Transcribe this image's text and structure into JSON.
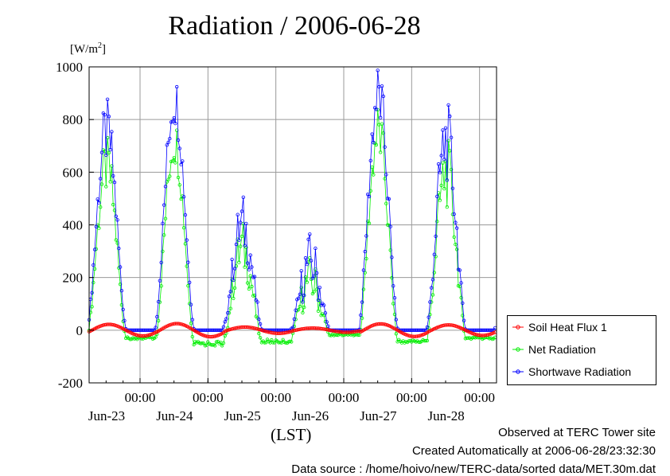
{
  "chart_data": {
    "type": "line",
    "title": "Radiation / 2006-06-28",
    "unit_label": "[W/m",
    "unit_sup": "2",
    "unit_close": "]",
    "xlabel": "(LST)",
    "ylim": [
      -200,
      1000
    ],
    "yticks": [
      -200,
      0,
      200,
      400,
      600,
      800,
      1000
    ],
    "ytick_labels": [
      "-200",
      "0",
      "200",
      "400",
      "600",
      "800",
      "1000"
    ],
    "x_range_hours": [
      0,
      144
    ],
    "x_ticks": [
      {
        "hour": 18,
        "time": "00:00",
        "date": "Jun-23"
      },
      {
        "hour": 42,
        "time": "00:00",
        "date": "Jun-24"
      },
      {
        "hour": 66,
        "time": "00:00",
        "date": "Jun-25"
      },
      {
        "hour": 90,
        "time": "00:00",
        "date": "Jun-26"
      },
      {
        "hour": 114,
        "time": "00:00",
        "date": "Jun-27"
      },
      {
        "hour": 138,
        "time": "00:00",
        "date": "Jun-28"
      }
    ],
    "grid": true,
    "legend_position": "right",
    "series": [
      {
        "name": "Soil Heat Flux 1",
        "color": "#ff0000",
        "marker": "circle"
      },
      {
        "name": "Net Radiation",
        "color": "#00ee00",
        "marker": "circle"
      },
      {
        "name": "Shortwave Radiation",
        "color": "#0000ff",
        "marker": "circle"
      }
    ],
    "days": [
      {
        "label": "Jun-23",
        "sw_peak": 750,
        "net_peak": 620,
        "night_net": -35,
        "soil_peak": 22,
        "jag": 0.35
      },
      {
        "label": "Jun-24",
        "sw_peak": 880,
        "net_peak": 720,
        "night_net": -60,
        "soil_peak": 25,
        "jag": 0.25
      },
      {
        "label": "Jun-25",
        "sw_peak": 400,
        "net_peak": 310,
        "night_net": -50,
        "soil_peak": 12,
        "jag": 0.6
      },
      {
        "label": "Jun-26",
        "sw_peak": 260,
        "net_peak": 190,
        "night_net": -20,
        "soil_peak": 8,
        "jag": 0.9
      },
      {
        "label": "Jun-27",
        "sw_peak": 890,
        "net_peak": 750,
        "night_net": -50,
        "soil_peak": 24,
        "jag": 0.3
      },
      {
        "label": "Jun-28",
        "sw_peak": 720,
        "net_peak": 600,
        "night_net": -35,
        "soil_peak": 20,
        "jag": 0.45
      }
    ]
  },
  "footer": {
    "site": "Observed at TERC Tower site",
    "created": "Created Automatically at 2006-06-28/23:32:30",
    "source": "Data source : /home/hoivo/new/TERC-data/sorted  data/MET.30m.dat"
  }
}
